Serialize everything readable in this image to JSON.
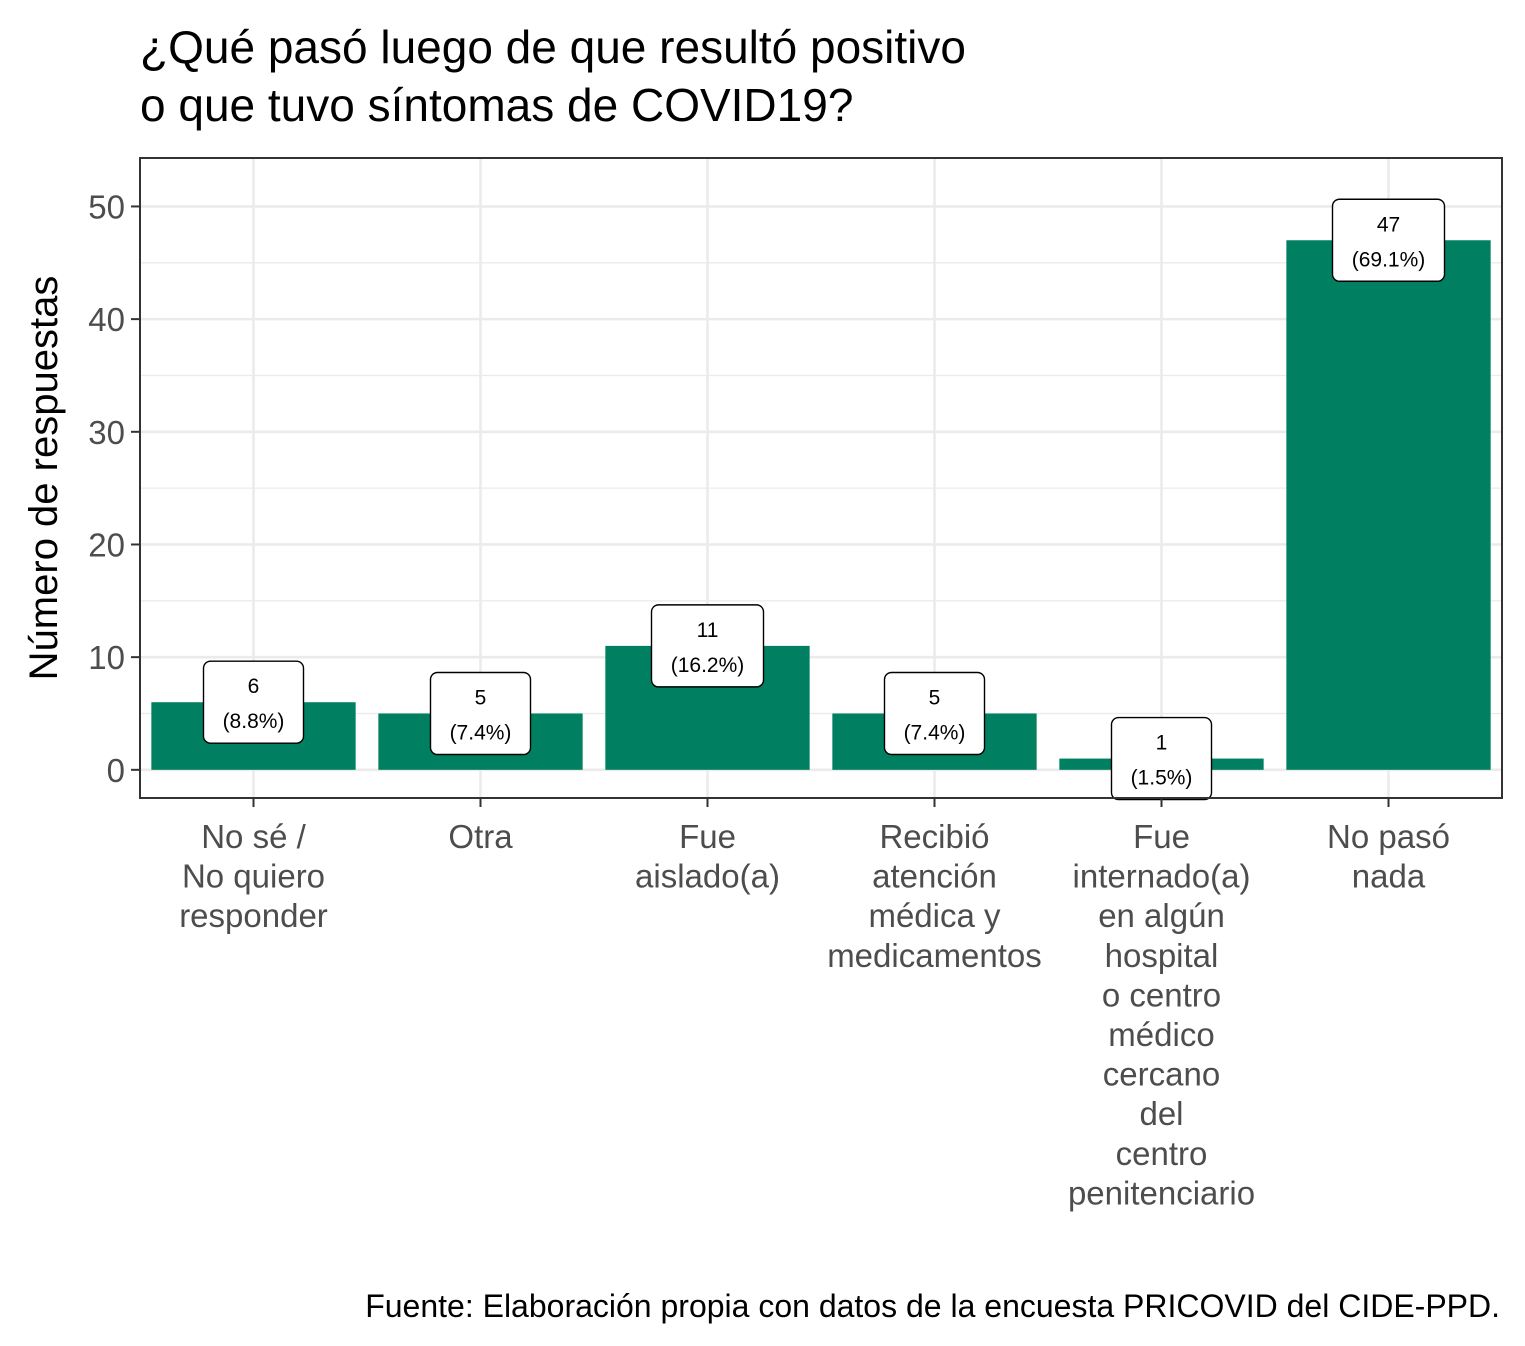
{
  "chart_data": {
    "type": "bar",
    "title": [
      "¿Qué pasó luego de que resultó positivo",
      "o que tuvo síntomas de COVID19?"
    ],
    "ylabel": "Número de respuestas",
    "xlabel": "",
    "caption": "Fuente: Elaboración propia con datos de la encuesta PRICOVID del CIDE-PPD.",
    "categories": [
      [
        "No sé /",
        "No quiero",
        "responder"
      ],
      [
        "Otra"
      ],
      [
        "Fue",
        "aislado(a)"
      ],
      [
        "Recibió",
        "atención",
        "médica y",
        "medicamentos"
      ],
      [
        "Fue",
        "internado(a)",
        "en algún",
        "hospital",
        "o centro",
        "médico",
        "cercano",
        "del",
        "centro",
        "penitenciario"
      ],
      [
        "No pasó",
        "nada"
      ]
    ],
    "values": [
      6,
      5,
      11,
      5,
      1,
      47
    ],
    "labels": [
      [
        "6",
        "(8.8%)"
      ],
      [
        "5",
        "(7.4%)"
      ],
      [
        "11",
        "(16.2%)"
      ],
      [
        "5",
        "(7.4%)"
      ],
      [
        "1",
        "(1.5%)"
      ],
      [
        "47",
        "(69.1%)"
      ]
    ],
    "ylim": [
      -2.5,
      54.3
    ],
    "yticks": [
      0,
      10,
      20,
      30,
      40,
      50
    ],
    "bar_color": "#008060",
    "grid": true
  }
}
